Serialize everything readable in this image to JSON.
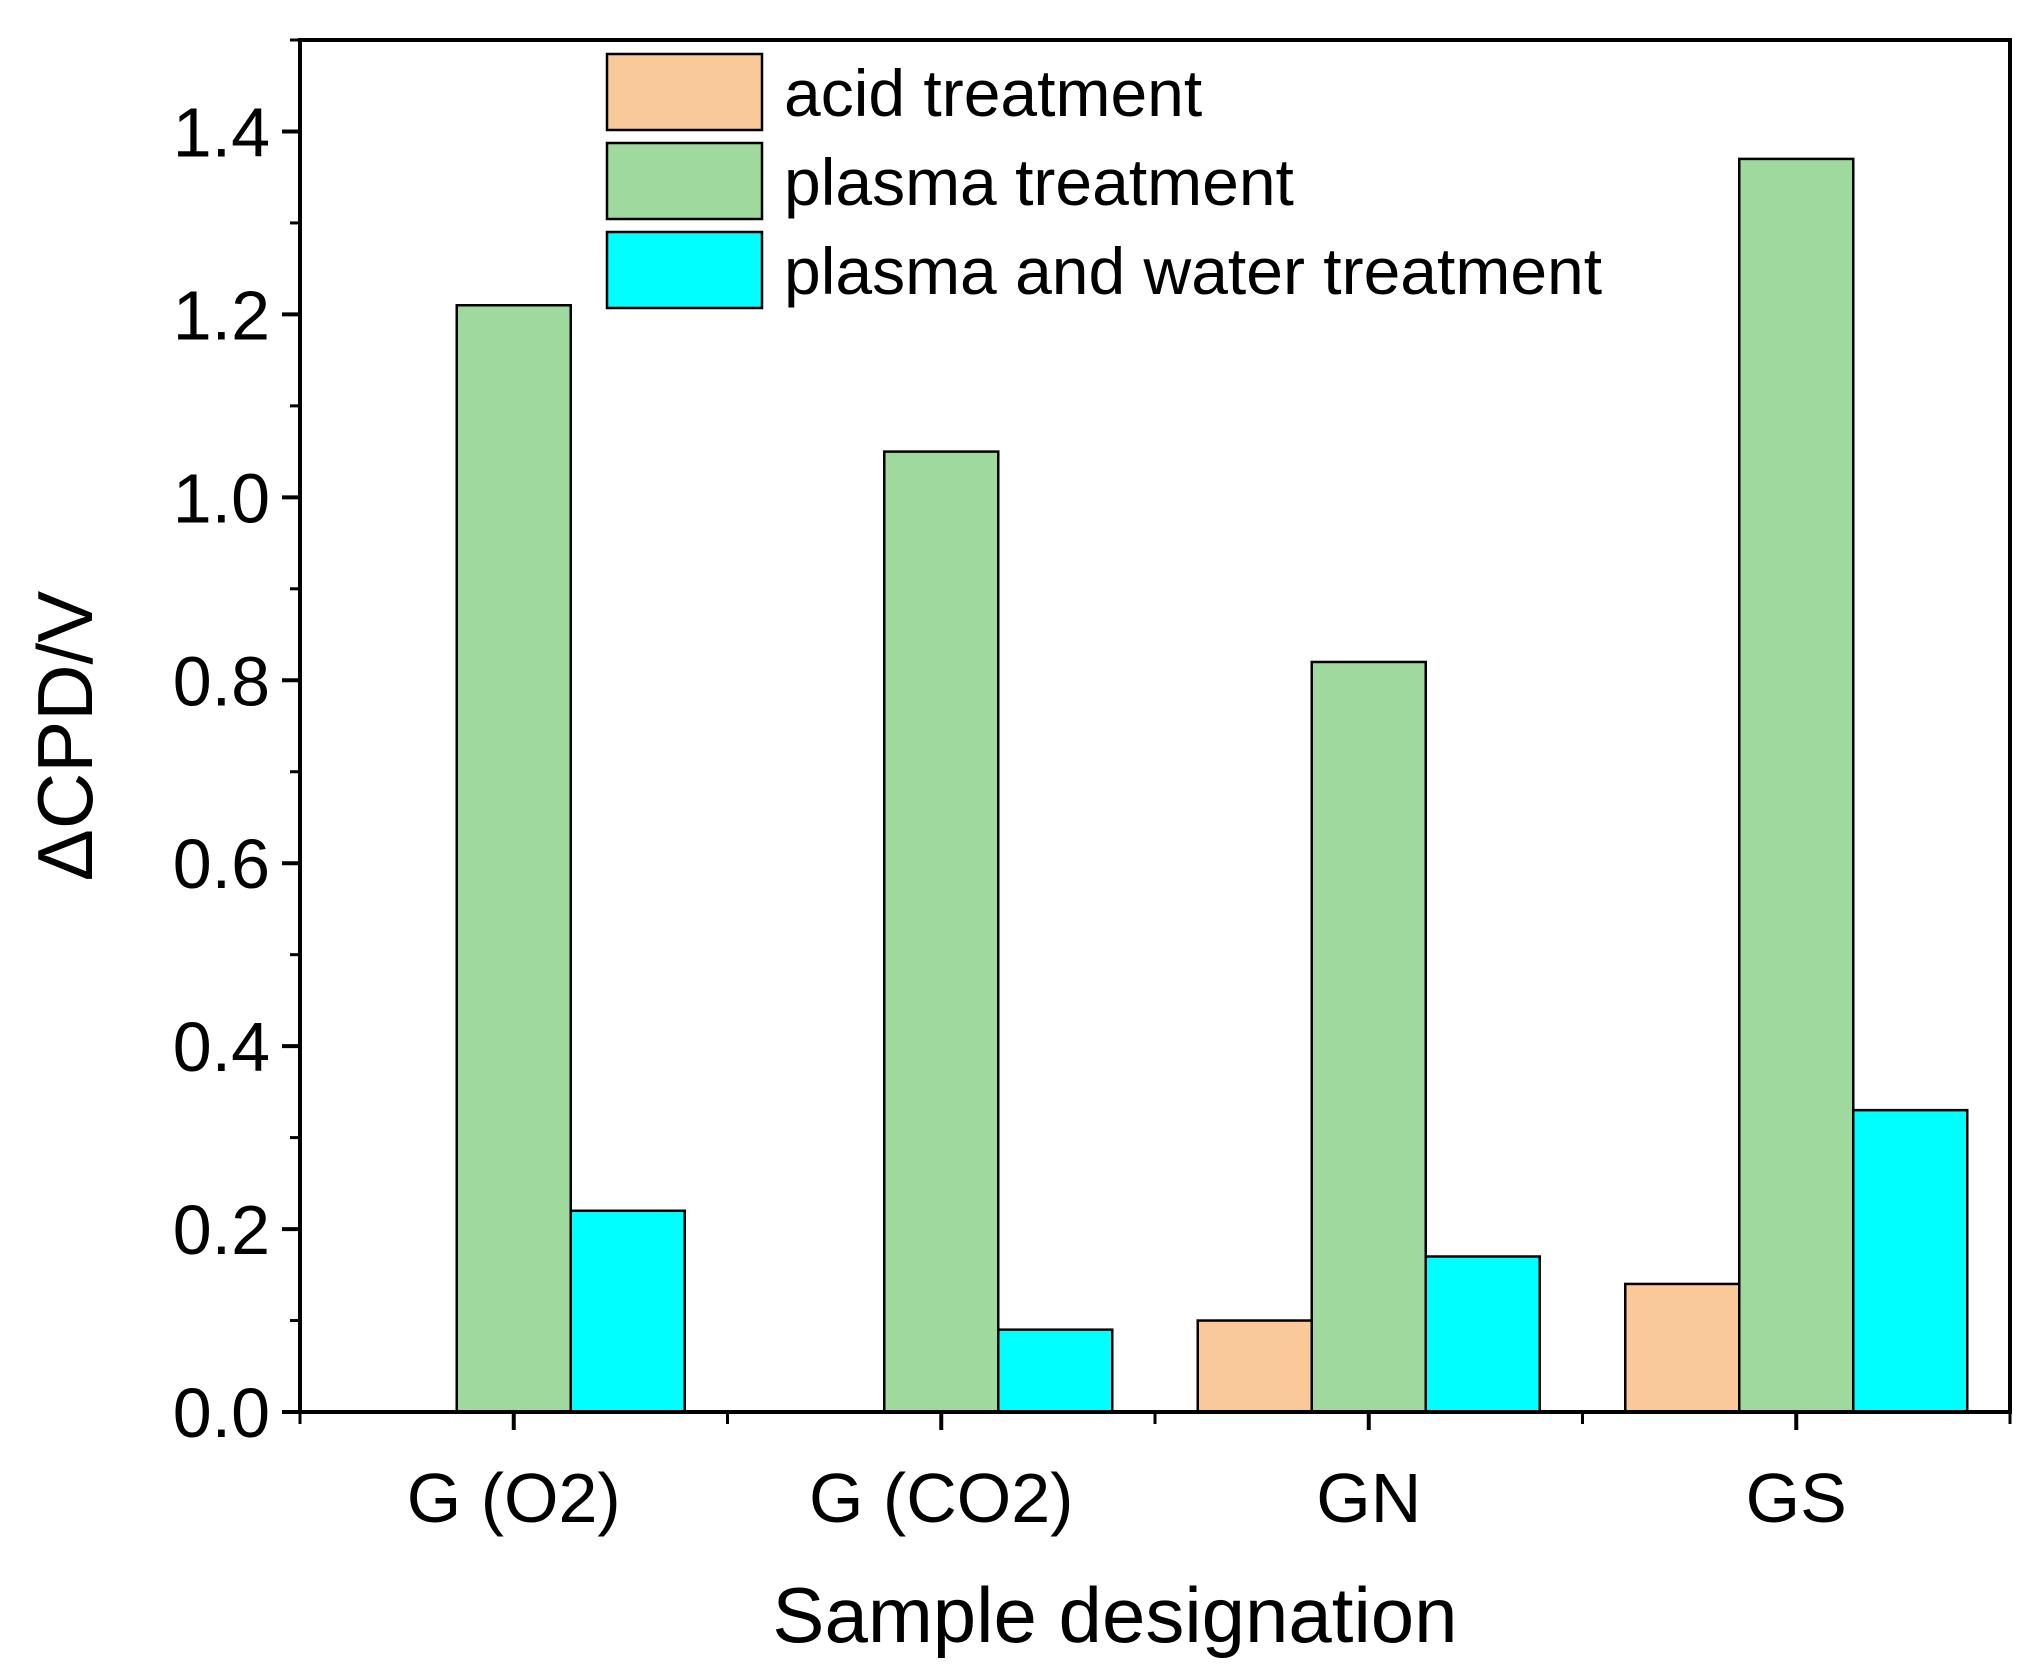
{
  "chart_data": {
    "type": "bar",
    "title": "",
    "xlabel": "Sample designation",
    "ylabel": "ΔCPD/V",
    "ylim": [
      0,
      1.5
    ],
    "yticks": [
      "0.0",
      "0.2",
      "0.4",
      "0.6",
      "0.8",
      "1.0",
      "1.2",
      "1.4"
    ],
    "grid": false,
    "legend_position": "top-center",
    "categories": [
      "G (O2)",
      "G (CO2)",
      "GN",
      "GS"
    ],
    "series": [
      {
        "name": "acid treatment",
        "color": "#F9C999",
        "values": [
          0,
          0,
          0.1,
          0.14
        ]
      },
      {
        "name": "plasma treatment",
        "color": "#A0D99E",
        "values": [
          1.21,
          1.05,
          0.82,
          1.37
        ]
      },
      {
        "name": "plasma and water treatment",
        "color": "#00FFFF",
        "values": [
          0.22,
          0.09,
          0.17,
          0.33
        ]
      }
    ]
  }
}
